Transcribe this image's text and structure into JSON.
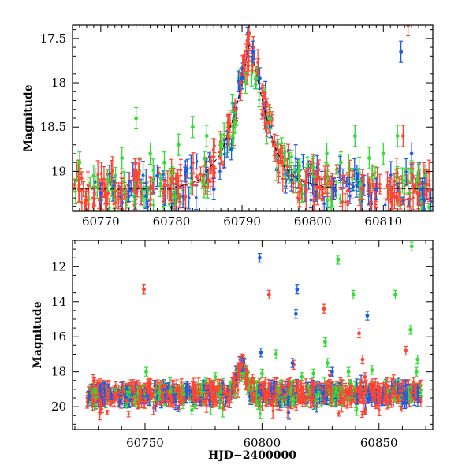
{
  "chart_data": [
    {
      "type": "scatter",
      "title": "",
      "xlabel": "",
      "ylabel": "Magnitude",
      "xlim": [
        60766,
        60817
      ],
      "ylim": [
        19.45,
        17.35
      ],
      "y_inverted": true,
      "xticks": [
        60770,
        60780,
        60790,
        60800,
        60810
      ],
      "xtick_labels": [
        "60770",
        "60780",
        "60790",
        "60800",
        "60810"
      ],
      "yticks": [
        17.5,
        18,
        18.5,
        19
      ],
      "ytick_labels": [
        "17.5",
        "18",
        "18.5",
        "19"
      ],
      "grid": false,
      "legend": "none",
      "series": [
        {
          "color": "#ff4433",
          "marker": "circle with error bar",
          "points": [
            [
              60767,
              19.22
            ],
            [
              60769,
              19.18
            ],
            [
              60771,
              19.25
            ],
            [
              60773,
              19.2
            ],
            [
              60775,
              19.24
            ],
            [
              60777,
              19.19
            ],
            [
              60779,
              19.23
            ],
            [
              60781,
              19.18
            ],
            [
              60783,
              19.15
            ],
            [
              60784.5,
              19.05
            ],
            [
              60786,
              18.95
            ],
            [
              60787,
              18.8
            ],
            [
              60788,
              18.6
            ],
            [
              60789,
              18.3
            ],
            [
              60789.8,
              18.0
            ],
            [
              60790.4,
              17.75
            ],
            [
              60791,
              17.45
            ],
            [
              60791.6,
              17.6
            ],
            [
              60792.3,
              17.85
            ],
            [
              60793,
              18.15
            ],
            [
              60793.8,
              18.45
            ],
            [
              60794.6,
              18.7
            ],
            [
              60795.5,
              18.9
            ],
            [
              60797,
              19.05
            ],
            [
              60799,
              19.12
            ],
            [
              60801,
              19.18
            ],
            [
              60803,
              19.2
            ],
            [
              60805,
              19.22
            ],
            [
              60807,
              19.2
            ],
            [
              60809,
              19.22
            ],
            [
              60811,
              19.2
            ],
            [
              60812.8,
              18.6
            ],
            [
              60813.5,
              17.35
            ],
            [
              60815,
              19.25
            ],
            [
              60816.5,
              19.22
            ]
          ]
        },
        {
          "color": "#1a5ce6",
          "marker": "circle with error bar",
          "points": [
            [
              60770,
              19.25
            ],
            [
              60774,
              19.22
            ],
            [
              60778,
              19.05
            ],
            [
              60782,
              19.0
            ],
            [
              60786,
              19.2
            ],
            [
              60788.5,
              18.75
            ],
            [
              60790,
              17.95
            ],
            [
              60791.5,
              17.65
            ],
            [
              60792.5,
              17.95
            ],
            [
              60794,
              18.5
            ],
            [
              60797,
              19.1
            ],
            [
              60800,
              19.15
            ],
            [
              60803,
              19.2
            ],
            [
              60806,
              18.6
            ],
            [
              60809,
              19.2
            ],
            [
              60812.5,
              17.65
            ],
            [
              60814,
              18.8
            ],
            [
              60815.5,
              19.2
            ]
          ]
        },
        {
          "color": "#33dd33",
          "marker": "circle with error bar",
          "points": [
            [
              60767,
              18.9
            ],
            [
              60769,
              19.05
            ],
            [
              60771,
              19.1
            ],
            [
              60773,
              18.85
            ],
            [
              60775,
              18.4
            ],
            [
              60777,
              18.8
            ],
            [
              60779,
              18.9
            ],
            [
              60781,
              18.7
            ],
            [
              60783,
              18.5
            ],
            [
              60785,
              18.6
            ],
            [
              60787,
              18.7
            ],
            [
              60789,
              18.45
            ],
            [
              60790.5,
              18.0
            ],
            [
              60792,
              17.95
            ],
            [
              60794,
              18.4
            ],
            [
              60796,
              18.8
            ],
            [
              60798,
              19.0
            ],
            [
              60800,
              18.95
            ],
            [
              60802,
              18.8
            ],
            [
              60804,
              18.9
            ],
            [
              60806,
              18.6
            ],
            [
              60808,
              18.85
            ],
            [
              60810,
              18.8
            ],
            [
              60812,
              18.6
            ],
            [
              60814,
              19.0
            ],
            [
              60816,
              19.05
            ]
          ]
        }
      ],
      "model_curve": {
        "color": "#000000",
        "style": "dashed line",
        "points": [
          [
            60766,
            19.2
          ],
          [
            60780,
            19.2
          ],
          [
            60784,
            19.1
          ],
          [
            60787,
            18.8
          ],
          [
            60789,
            18.35
          ],
          [
            60790.5,
            17.8
          ],
          [
            60791,
            17.55
          ],
          [
            60791.6,
            17.75
          ],
          [
            60793,
            18.25
          ],
          [
            60794.5,
            18.7
          ],
          [
            60796,
            18.95
          ],
          [
            60798,
            19.1
          ],
          [
            60802,
            19.18
          ],
          [
            60817,
            19.2
          ]
        ]
      }
    },
    {
      "type": "scatter",
      "title": "",
      "xlabel": "HJD−2400000",
      "ylabel": "Magnitude",
      "xlim": [
        60719,
        60873
      ],
      "ylim": [
        21.3,
        10.5
      ],
      "y_inverted": true,
      "xticks": [
        60750,
        60800,
        60850
      ],
      "xtick_labels": [
        "60750",
        "60800",
        "60850"
      ],
      "yticks": [
        12,
        14,
        16,
        18,
        20
      ],
      "ytick_labels": [
        "12",
        "14",
        "16",
        "18",
        "20"
      ],
      "grid": false,
      "legend": "none",
      "baseline": {
        "x_start": 60725,
        "x_end": 60868,
        "mag": 19.25,
        "scatter": 0.5
      },
      "series": [
        {
          "color": "#ff4433",
          "marker": "circle with error bar",
          "points": [
            [
              60749.5,
              13.3
            ],
            [
              60803,
              13.6
            ],
            [
              60788,
              18.3
            ],
            [
              60790,
              17.9
            ],
            [
              60791.5,
              17.55
            ],
            [
              60793.5,
              17.9
            ],
            [
              60796,
              18.4
            ],
            [
              60813.5,
              17.6
            ],
            [
              60826.5,
              14.4
            ],
            [
              60829,
              18.2
            ],
            [
              60838,
              19.8
            ],
            [
              60841.5,
              15.8
            ],
            [
              60843,
              17.3
            ],
            [
              60844,
              18.3
            ],
            [
              60861.5,
              16.8
            ],
            [
              60864,
              19.2
            ]
          ]
        },
        {
          "color": "#1a5ce6",
          "marker": "circle with error bar",
          "points": [
            [
              60799,
              11.5
            ],
            [
              60799.5,
              16.9
            ],
            [
              60813,
              17.5
            ],
            [
              60815,
              13.3
            ],
            [
              60814.5,
              14.7
            ],
            [
              60830,
              18.0
            ],
            [
              60845,
              14.8
            ],
            [
              60846,
              19.5
            ]
          ]
        },
        {
          "color": "#33dd33",
          "marker": "circle with error bar",
          "points": [
            [
              60750.5,
              18.0
            ],
            [
              60770,
              20.2
            ],
            [
              60780,
              18.3
            ],
            [
              60800,
              18.1
            ],
            [
              60806,
              17.0
            ],
            [
              60817,
              18.3
            ],
            [
              60822,
              18.1
            ],
            [
              60827,
              16.3
            ],
            [
              60828,
              17.5
            ],
            [
              60832.5,
              11.6
            ],
            [
              60837,
              18.0
            ],
            [
              60839,
              13.6
            ],
            [
              60847,
              17.9
            ],
            [
              60857,
              13.6
            ],
            [
              60863.5,
              15.6
            ],
            [
              60864,
              10.85
            ],
            [
              60866,
              18.0
            ],
            [
              60866.5,
              17.3
            ]
          ]
        }
      ]
    }
  ]
}
